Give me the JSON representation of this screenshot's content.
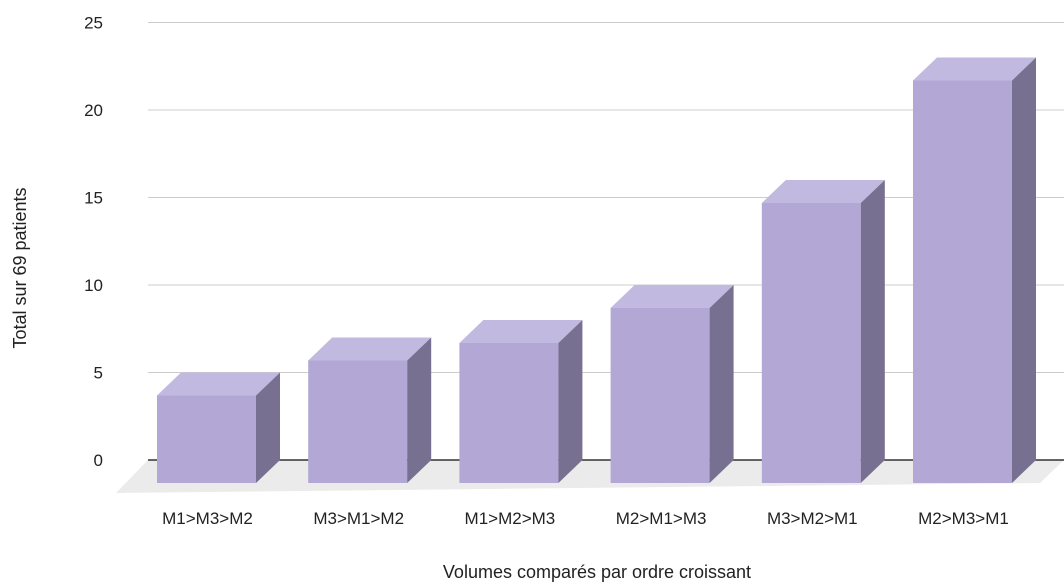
{
  "chart_data": {
    "type": "bar",
    "style": "3d",
    "title": "",
    "xlabel": "Volumes comparés par ordre croissant",
    "ylabel": "Total sur 69 patients",
    "categories": [
      "M1>M3>M2",
      "M3>M1>M2",
      "M1>M2>M3",
      "M2>M1>M3",
      "M3>M2>M1",
      "M2>M3>M1"
    ],
    "values": [
      5,
      7,
      8,
      10,
      16,
      23
    ],
    "ylim": [
      0,
      25
    ],
    "yticks": [
      "0",
      "5",
      "10",
      "15",
      "20",
      "25"
    ],
    "grid": true,
    "legend": "none"
  },
  "colors": {
    "bar_front": "#b2a7d5",
    "bar_top": "#c2b9e0",
    "bar_side": "#787090",
    "floor": "#ebebeb",
    "gridline": "#cccccc",
    "baseline": "#333333"
  }
}
